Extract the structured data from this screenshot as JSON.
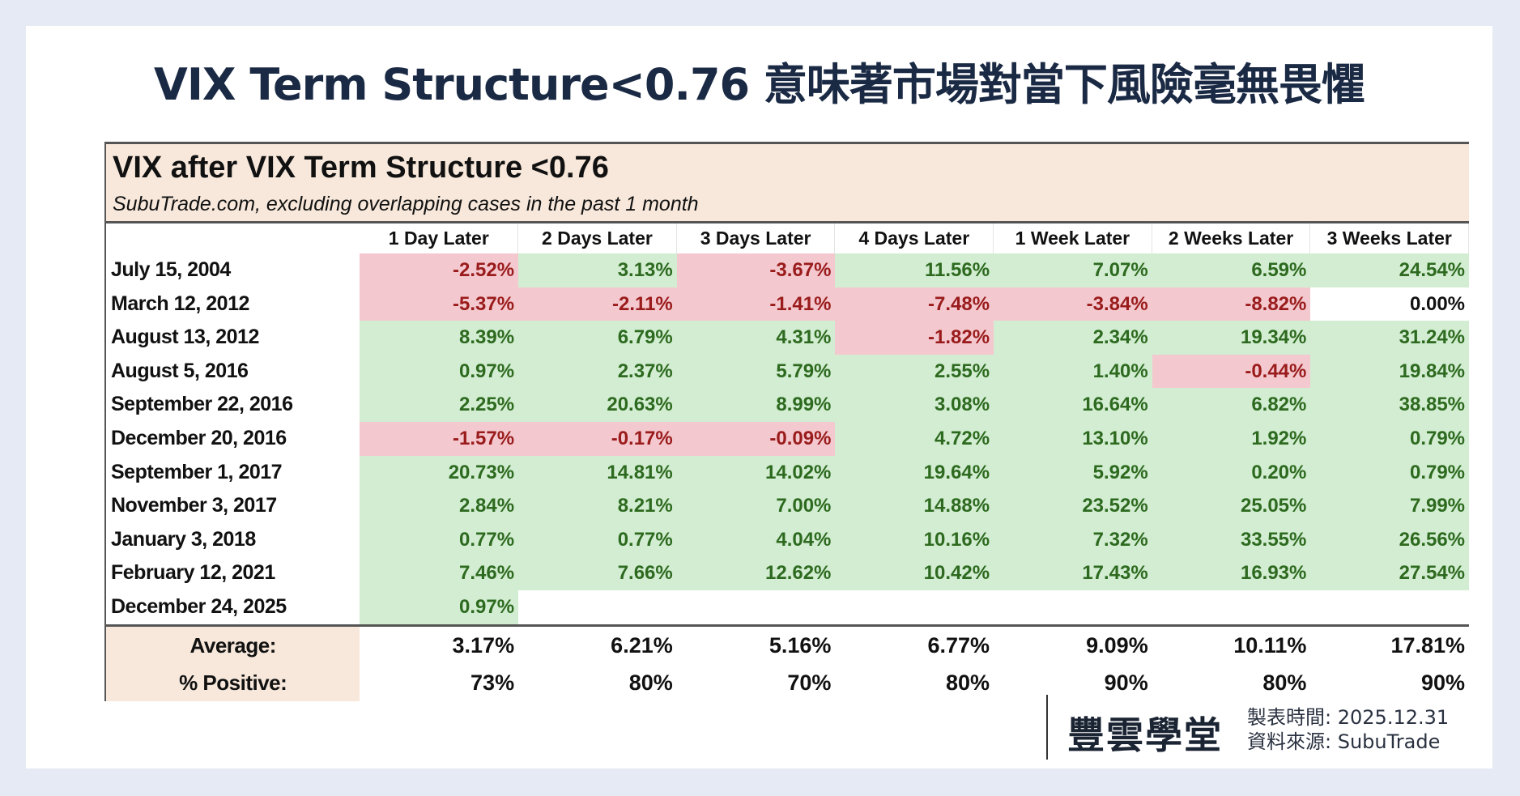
{
  "page": {
    "title": "VIX Term Structure<0.76 意味著市場對當下風險毫無畏懼"
  },
  "table": {
    "title": "VIX after VIX Term Structure <0.76",
    "subtitle": "SubuTrade.com, excluding overlapping cases in the past 1 month",
    "columns": [
      "1 Day Later",
      "2 Days Later",
      "3 Days Later",
      "4 Days Later",
      "1 Week Later",
      "2 Weeks Later",
      "3 Weeks Later"
    ],
    "rows": [
      {
        "date": "July 15, 2004",
        "values": [
          "-2.52%",
          "3.13%",
          "-3.67%",
          "11.56%",
          "7.07%",
          "6.59%",
          "24.54%"
        ]
      },
      {
        "date": "March 12, 2012",
        "values": [
          "-5.37%",
          "-2.11%",
          "-1.41%",
          "-7.48%",
          "-3.84%",
          "-8.82%",
          "0.00%"
        ]
      },
      {
        "date": "August 13, 2012",
        "values": [
          "8.39%",
          "6.79%",
          "4.31%",
          "-1.82%",
          "2.34%",
          "19.34%",
          "31.24%"
        ]
      },
      {
        "date": "August 5, 2016",
        "values": [
          "0.97%",
          "2.37%",
          "5.79%",
          "2.55%",
          "1.40%",
          "-0.44%",
          "19.84%"
        ]
      },
      {
        "date": "September 22, 2016",
        "values": [
          "2.25%",
          "20.63%",
          "8.99%",
          "3.08%",
          "16.64%",
          "6.82%",
          "38.85%"
        ]
      },
      {
        "date": "December 20, 2016",
        "values": [
          "-1.57%",
          "-0.17%",
          "-0.09%",
          "4.72%",
          "13.10%",
          "1.92%",
          "0.79%"
        ]
      },
      {
        "date": "September 1, 2017",
        "values": [
          "20.73%",
          "14.81%",
          "14.02%",
          "19.64%",
          "5.92%",
          "0.20%",
          "0.79%"
        ]
      },
      {
        "date": "November 3, 2017",
        "values": [
          "2.84%",
          "8.21%",
          "7.00%",
          "14.88%",
          "23.52%",
          "25.05%",
          "7.99%"
        ]
      },
      {
        "date": "January 3, 2018",
        "values": [
          "0.77%",
          "0.77%",
          "4.04%",
          "10.16%",
          "7.32%",
          "33.55%",
          "26.56%"
        ]
      },
      {
        "date": "February 12, 2021",
        "values": [
          "7.46%",
          "7.66%",
          "12.62%",
          "10.42%",
          "17.43%",
          "16.93%",
          "27.54%"
        ]
      },
      {
        "date": "December 24, 2025",
        "values": [
          "0.97%",
          "",
          "",
          "",
          "",
          "",
          ""
        ]
      }
    ],
    "summary": {
      "average_label": "Average:",
      "average": [
        "3.17%",
        "6.21%",
        "5.16%",
        "6.77%",
        "9.09%",
        "10.11%",
        "17.81%"
      ],
      "positive_label": "% Positive:",
      "positive": [
        "73%",
        "80%",
        "70%",
        "80%",
        "90%",
        "80%",
        "90%"
      ]
    }
  },
  "footer": {
    "logo": "豐雲學堂",
    "made_label": "製表時間:",
    "made_date": "2025.12.31",
    "source_label": "資料來源:",
    "source": "SubuTrade"
  },
  "colors": {
    "positive_bg": "#d2edd1",
    "positive_text": "#2d6a1f",
    "negative_bg": "#f3c9cf",
    "negative_text": "#9a1b1b",
    "header_bg": "#f7e8db",
    "title": "#1b2a44",
    "page_bg": "#e6eaf4"
  },
  "chart_data": {
    "type": "table",
    "title": "VIX after VIX Term Structure <0.76",
    "subtitle": "SubuTrade.com, excluding overlapping cases in the past 1 month",
    "columns": [
      "1 Day Later",
      "2 Days Later",
      "3 Days Later",
      "4 Days Later",
      "1 Week Later",
      "2 Weeks Later",
      "3 Weeks Later"
    ],
    "categories": [
      "July 15, 2004",
      "March 12, 2012",
      "August 13, 2012",
      "August 5, 2016",
      "September 22, 2016",
      "December 20, 2016",
      "September 1, 2017",
      "November 3, 2017",
      "January 3, 2018",
      "February 12, 2021",
      "December 24, 2025"
    ],
    "series": [
      {
        "name": "1 Day Later",
        "values": [
          -2.52,
          -5.37,
          8.39,
          0.97,
          2.25,
          -1.57,
          20.73,
          2.84,
          0.77,
          7.46,
          0.97
        ]
      },
      {
        "name": "2 Days Later",
        "values": [
          3.13,
          -2.11,
          6.79,
          2.37,
          20.63,
          -0.17,
          14.81,
          8.21,
          0.77,
          7.66,
          null
        ]
      },
      {
        "name": "3 Days Later",
        "values": [
          -3.67,
          -1.41,
          4.31,
          5.79,
          8.99,
          -0.09,
          14.02,
          7.0,
          4.04,
          12.62,
          null
        ]
      },
      {
        "name": "4 Days Later",
        "values": [
          11.56,
          -7.48,
          -1.82,
          2.55,
          3.08,
          4.72,
          19.64,
          14.88,
          10.16,
          10.42,
          null
        ]
      },
      {
        "name": "1 Week Later",
        "values": [
          7.07,
          -3.84,
          2.34,
          1.4,
          16.64,
          13.1,
          5.92,
          23.52,
          7.32,
          17.43,
          null
        ]
      },
      {
        "name": "2 Weeks Later",
        "values": [
          6.59,
          -8.82,
          19.34,
          -0.44,
          6.82,
          1.92,
          0.2,
          25.05,
          33.55,
          16.93,
          null
        ]
      },
      {
        "name": "3 Weeks Later",
        "values": [
          24.54,
          0.0,
          31.24,
          19.84,
          38.85,
          0.79,
          0.79,
          7.99,
          26.56,
          27.54,
          null
        ]
      }
    ],
    "summary": {
      "Average": [
        3.17,
        6.21,
        5.16,
        6.77,
        9.09,
        10.11,
        17.81
      ],
      "% Positive": [
        73,
        80,
        70,
        80,
        90,
        80,
        90
      ]
    },
    "unit": "%"
  }
}
